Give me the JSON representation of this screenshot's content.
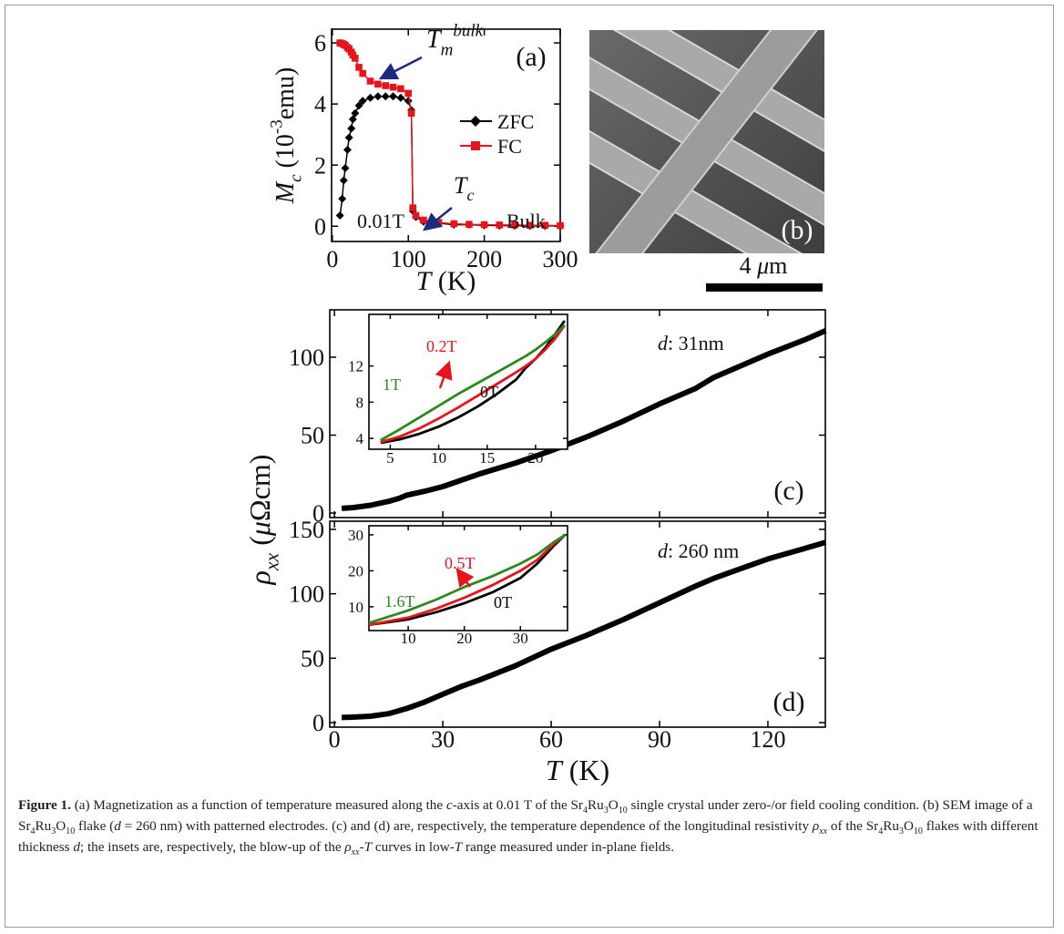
{
  "chart_data": [
    {
      "type": "line",
      "panel_label": "(a)",
      "x": [
        10,
        13,
        15,
        17,
        20,
        22,
        25,
        27,
        30,
        35,
        40,
        50,
        60,
        70,
        80,
        90,
        100,
        104,
        106,
        110,
        120,
        140,
        160,
        180,
        200,
        220,
        240,
        260,
        280,
        300
      ],
      "series": [
        {
          "name": "ZFC",
          "color": "#000000",
          "marker": "diamond",
          "values": [
            0.35,
            0.9,
            1.5,
            1.9,
            2.5,
            2.9,
            3.2,
            3.5,
            3.7,
            3.95,
            4.1,
            4.2,
            4.25,
            4.25,
            4.25,
            4.2,
            4.1,
            3.8,
            0.5,
            0.3,
            0.15,
            0.1,
            0.05,
            0.05,
            0.03,
            0.02,
            0.02,
            0.01,
            0.01,
            0.01
          ]
        },
        {
          "name": "FC",
          "color": "#e8141c",
          "marker": "square",
          "values": [
            6.0,
            5.98,
            5.95,
            5.92,
            5.85,
            5.8,
            5.7,
            5.6,
            5.5,
            5.2,
            5.0,
            4.75,
            4.65,
            4.6,
            4.55,
            4.5,
            4.35,
            3.7,
            0.6,
            0.35,
            0.2,
            0.12,
            0.08,
            0.06,
            0.05,
            0.04,
            0.04,
            0.03,
            0.03,
            0.02
          ]
        }
      ],
      "xlim": [
        -1,
        300
      ],
      "ylim": [
        -0.5,
        6.45
      ],
      "xticks": [
        0,
        100,
        200,
        300
      ],
      "yticks": [
        0,
        2,
        4,
        6
      ],
      "xlabel": [
        {
          "text": "T",
          "style": "i"
        },
        {
          "text": " (K)"
        }
      ],
      "ylabel": [
        {
          "text": "M",
          "style": "i"
        },
        {
          "text": "c",
          "style": "i-sub"
        },
        {
          "text": " (10"
        },
        {
          "text": "-3",
          "style": "sup"
        },
        {
          "text": "emu)"
        }
      ],
      "annotations": [
        "0.01T",
        "Bulk"
      ],
      "arrow_labels": [
        [
          {
            "text": "T",
            "style": "i"
          },
          {
            "text": "m",
            "style": "i-sub"
          },
          {
            "text": "bulk",
            "style": "i-sup"
          }
        ],
        [
          {
            "text": "T",
            "style": "i"
          },
          {
            "text": "c",
            "style": "i-sub"
          }
        ]
      ],
      "arrow_color": "#1c2a80"
    },
    {
      "type": "line",
      "panel_label": "(c)",
      "x": [
        2,
        5,
        10,
        15,
        18,
        20,
        25,
        30,
        40,
        50,
        60,
        70,
        80,
        90,
        100,
        105,
        110,
        120,
        130,
        136
      ],
      "series": [
        {
          "color": "#000000",
          "values": [
            3,
            3.5,
            5,
            7.5,
            9.5,
            11.5,
            14,
            17,
            25,
            32,
            40,
            49,
            59,
            70,
            80,
            87,
            92,
            102,
            111,
            117
          ]
        }
      ],
      "xlim": [
        -1.3,
        135.9
      ],
      "ylim": [
        -2.9,
        130.4
      ],
      "xticks": [
        0,
        30,
        60,
        90,
        120
      ],
      "yticks": [
        0,
        50,
        100
      ],
      "show_xtick_labels": false,
      "annotation": [
        {
          "text": "d",
          "style": "i"
        },
        {
          "text": ": 31nm"
        }
      ]
    },
    {
      "type": "line",
      "x": [
        4,
        6,
        8,
        10,
        12,
        14,
        16,
        18,
        19,
        20,
        21,
        22,
        23
      ],
      "series": [
        {
          "name": "0T",
          "color": "#000000",
          "values": [
            3.5,
            3.9,
            4.5,
            5.3,
            6.3,
            7.5,
            8.9,
            10.5,
            11.8,
            12.8,
            14,
            15.5,
            17
          ]
        },
        {
          "name": "0.2T",
          "color": "#e8141c",
          "values": [
            3.6,
            4.2,
            5.1,
            6.2,
            7.4,
            8.7,
            10.0,
            11.3,
            12.0,
            12.8,
            13.8,
            15,
            16.5
          ]
        },
        {
          "name": "1T",
          "color": "#2a8a1e",
          "values": [
            3.8,
            5,
            6.3,
            7.6,
            8.9,
            10.1,
            11.3,
            12.5,
            13.1,
            13.8,
            14.6,
            15.5,
            16.5
          ]
        }
      ],
      "xlim": [
        2.8,
        23.3
      ],
      "ylim": [
        2.8,
        17.7
      ],
      "xticks": [
        5,
        10,
        15,
        20
      ],
      "yticks": [
        4,
        8,
        12
      ]
    },
    {
      "type": "line",
      "panel_label": "(d)",
      "x": [
        2,
        5,
        10,
        15,
        20,
        25,
        30,
        35,
        40,
        50,
        60,
        70,
        80,
        90,
        100,
        105,
        110,
        120,
        130,
        136
      ],
      "series": [
        {
          "color": "#000000",
          "values": [
            4,
            4.3,
            5,
            7,
            11,
            16,
            22,
            28,
            33,
            44,
            57,
            68,
            80,
            93,
            106,
            112,
            117,
            127,
            135,
            140
          ]
        }
      ],
      "xlim": [
        -1.3,
        135.9
      ],
      "ylim": [
        -3.5,
        156.3
      ],
      "xticks": [
        0,
        30,
        60,
        90,
        120
      ],
      "yticks": [
        0,
        50,
        100,
        150
      ],
      "show_xtick_labels": true,
      "xlabel": [
        {
          "text": "T",
          "style": "i"
        },
        {
          "text": " (K)"
        }
      ],
      "annotation": [
        {
          "text": "d",
          "style": "i"
        },
        {
          "text": ": 260 nm"
        }
      ]
    },
    {
      "type": "line",
      "x": [
        3,
        10,
        15,
        20,
        25,
        30,
        33,
        36,
        38
      ],
      "series": [
        {
          "name": "0T",
          "color": "#000000",
          "values": [
            5,
            6.5,
            8.5,
            11,
            14,
            18,
            22,
            27,
            30
          ]
        },
        {
          "name": "0.5T",
          "color": "#e8141c",
          "values": [
            5,
            7,
            9.5,
            12.5,
            16,
            20,
            23,
            27.5,
            30
          ]
        },
        {
          "name": "1.6T",
          "color": "#2a8a1e",
          "values": [
            5.5,
            9,
            12,
            15.5,
            18.5,
            22,
            24.5,
            28,
            30
          ]
        }
      ],
      "xlim": [
        3,
        38.4
      ],
      "ylim": [
        3.4,
        32.5
      ],
      "xticks": [
        10,
        20,
        30
      ],
      "yticks": [
        10,
        20,
        30
      ]
    }
  ],
  "figure": {
    "sem_label": "(b)",
    "scale_bar": [
      {
        "text": "4 "
      },
      {
        "text": "μ",
        "style": "i"
      },
      {
        "text": "m"
      }
    ],
    "ylabel": [
      {
        "text": "ρ",
        "style": "i"
      },
      {
        "text": "xx",
        "style": "i-sub"
      },
      {
        "text": " ("
      },
      {
        "text": "μ",
        "style": "i"
      },
      {
        "text": "Ωcm)"
      }
    ],
    "caption": [
      {
        "text": "Figure 1.",
        "style": "b"
      },
      {
        "text": " (a) Magnetization as a function of temperature measured along the "
      },
      {
        "text": "c",
        "style": "i"
      },
      {
        "text": "-axis at 0.01 T of the Sr"
      },
      {
        "text": "4",
        "style": "sub"
      },
      {
        "text": "Ru"
      },
      {
        "text": "3",
        "style": "sub"
      },
      {
        "text": "O"
      },
      {
        "text": "10",
        "style": "sub"
      },
      {
        "text": " single crystal under zero-/or field cooling condition. (b) SEM image of a Sr"
      },
      {
        "text": "4",
        "style": "sub"
      },
      {
        "text": "Ru"
      },
      {
        "text": "3",
        "style": "sub"
      },
      {
        "text": "O"
      },
      {
        "text": "10",
        "style": "sub"
      },
      {
        "text": " flake ("
      },
      {
        "text": "d",
        "style": "i"
      },
      {
        "text": " = 260 nm) with patterned electrodes. (c) and (d) are, respectively, the temperature dependence of the longitudinal resistivity "
      },
      {
        "text": "ρ",
        "style": "i"
      },
      {
        "text": "xx",
        "style": "i-sub"
      },
      {
        "text": " of the Sr"
      },
      {
        "text": "4",
        "style": "sub"
      },
      {
        "text": "Ru"
      },
      {
        "text": "3",
        "style": "sub"
      },
      {
        "text": "O"
      },
      {
        "text": "10",
        "style": "sub"
      },
      {
        "text": " flakes with different thickness "
      },
      {
        "text": "d",
        "style": "i"
      },
      {
        "text": "; the insets are, respectively, the blow-up of the "
      },
      {
        "text": "ρ",
        "style": "i"
      },
      {
        "text": "xx",
        "style": "i-sub"
      },
      {
        "text": "-"
      },
      {
        "text": "T",
        "style": "i"
      },
      {
        "text": " curves in low-"
      },
      {
        "text": "T",
        "style": "i"
      },
      {
        "text": " range measured under in-plane fields."
      }
    ]
  }
}
